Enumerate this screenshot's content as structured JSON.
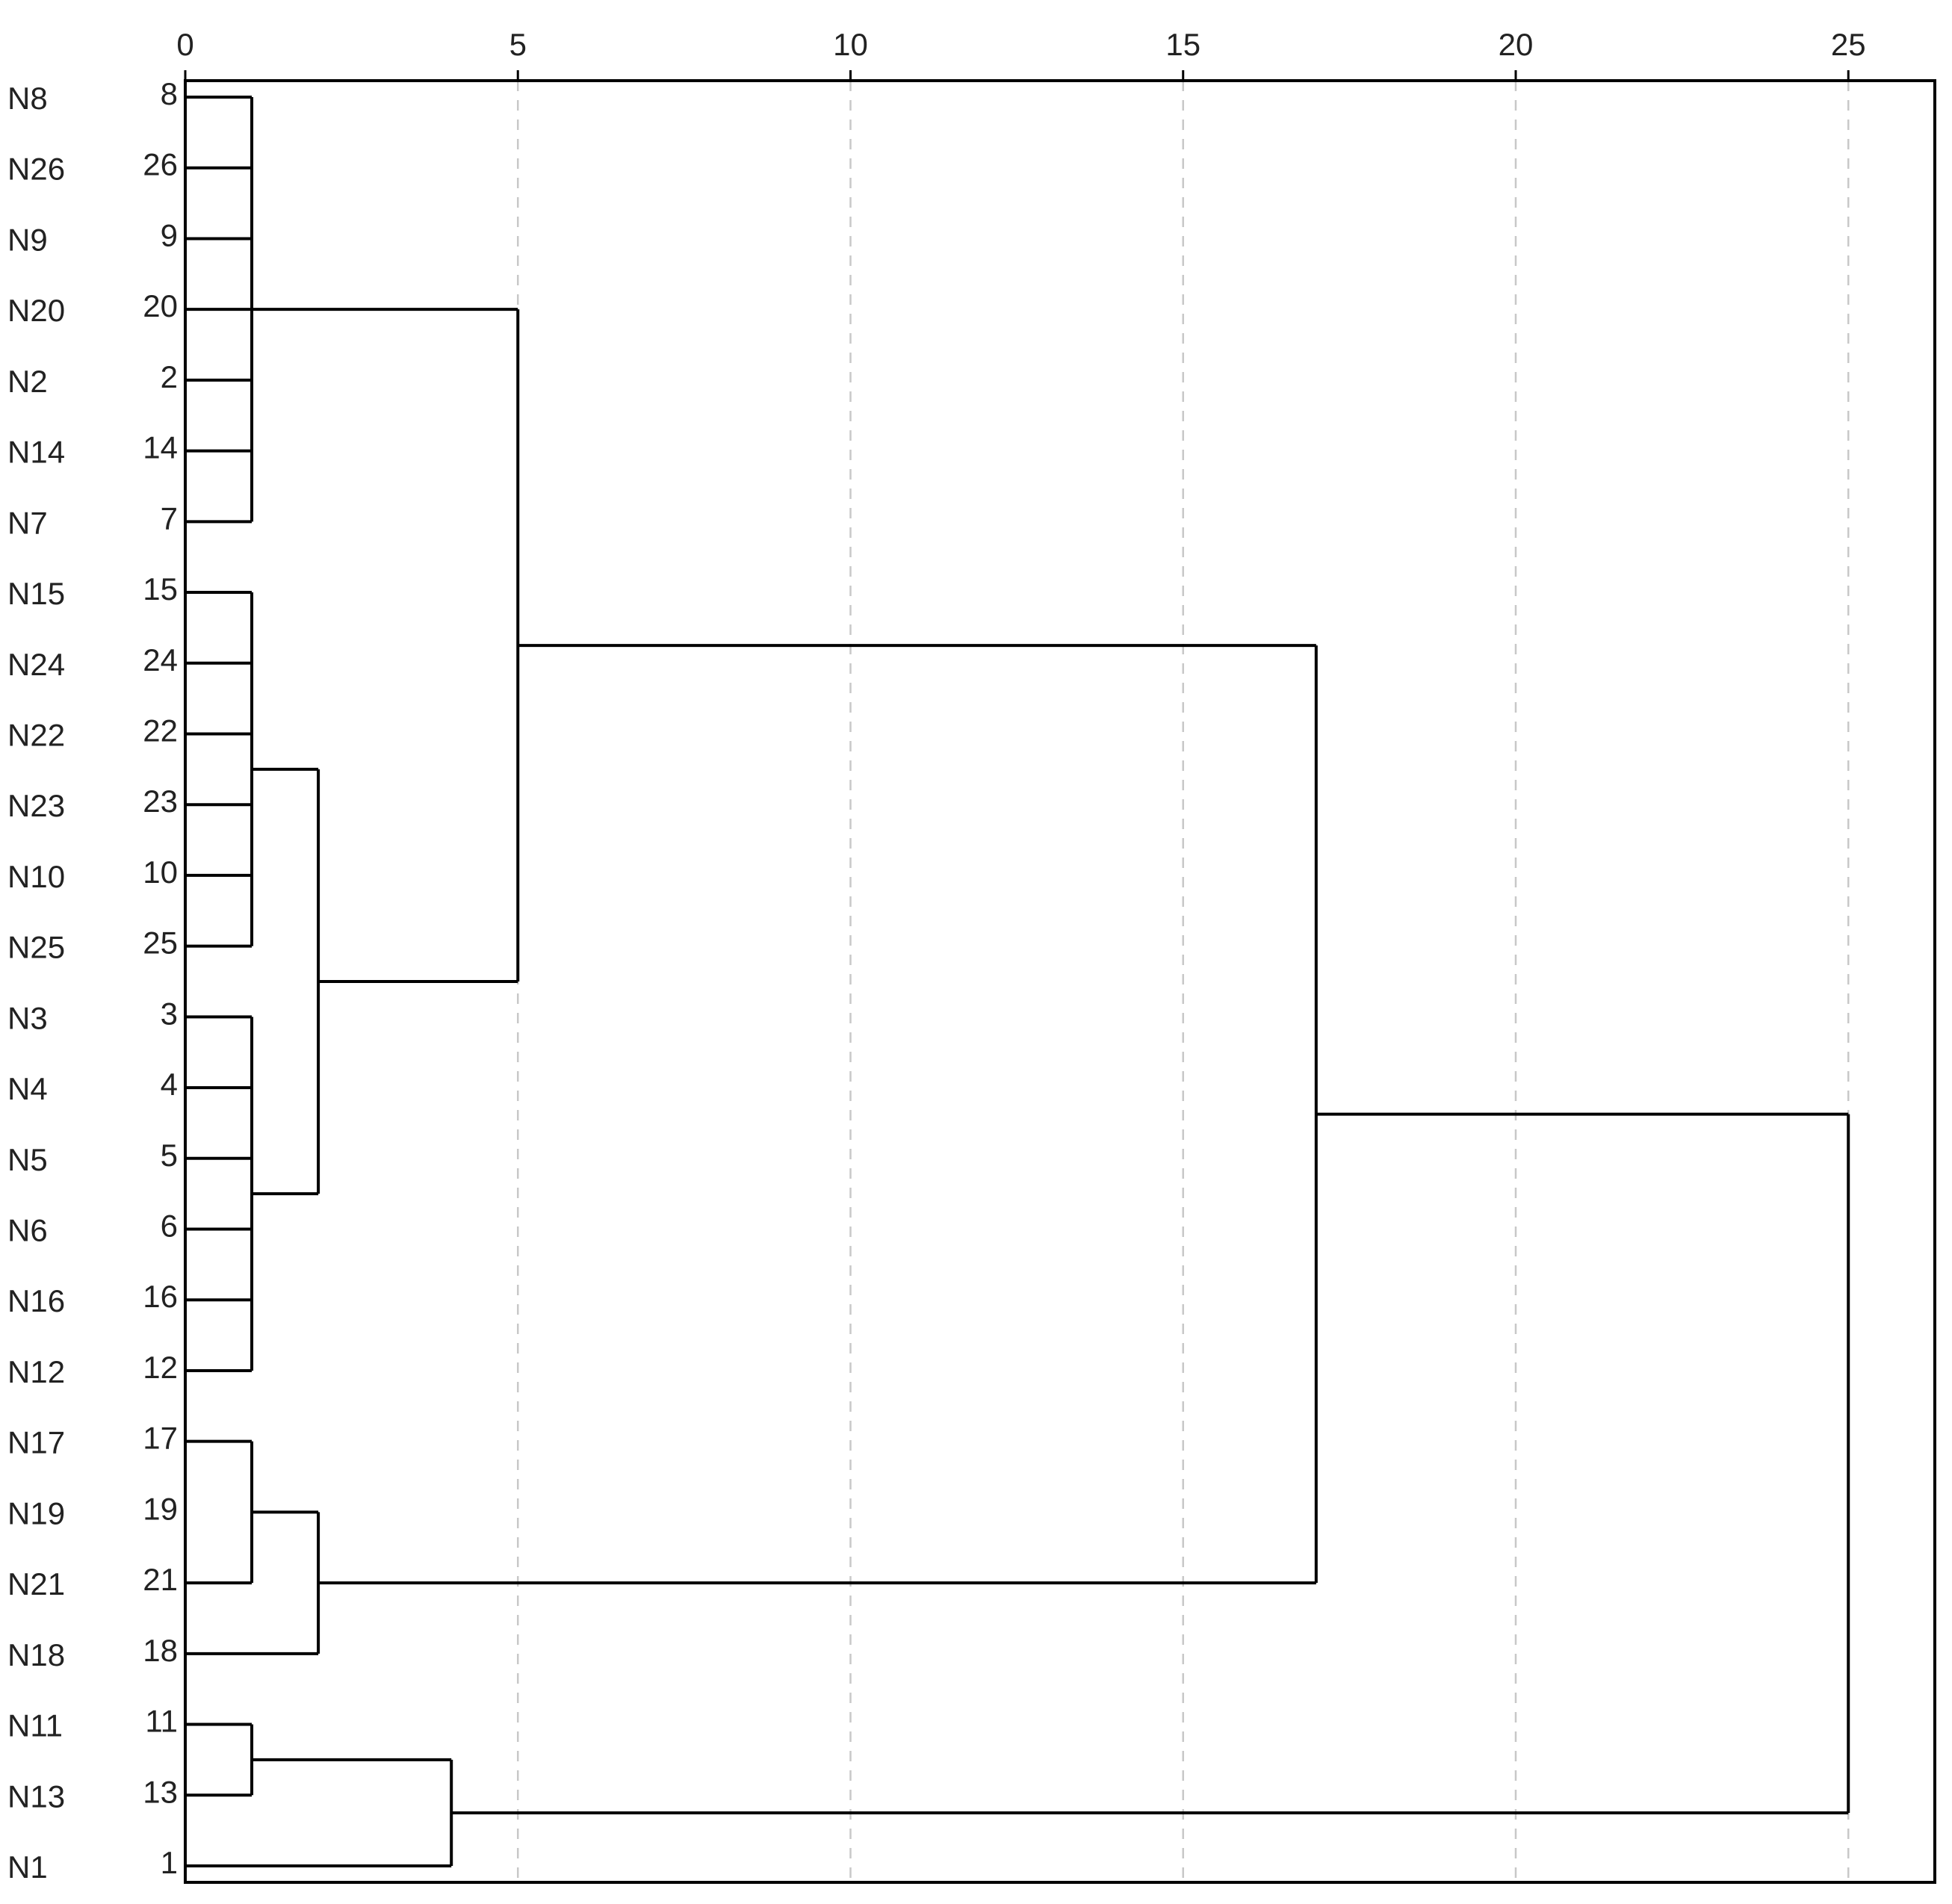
{
  "chart_data": {
    "type": "dendrogram",
    "x_axis": {
      "ticks": [
        0,
        5,
        10,
        15,
        20,
        25
      ],
      "xlim": [
        0,
        26.3
      ],
      "position": "top"
    },
    "grid": "vertical dashed at ticks",
    "leaves": [
      {
        "name": "N8",
        "number": "8"
      },
      {
        "name": "N26",
        "number": "26"
      },
      {
        "name": "N9",
        "number": "9"
      },
      {
        "name": "N20",
        "number": "20"
      },
      {
        "name": "N2",
        "number": "2"
      },
      {
        "name": "N14",
        "number": "14"
      },
      {
        "name": "N7",
        "number": "7"
      },
      {
        "name": "N15",
        "number": "15"
      },
      {
        "name": "N24",
        "number": "24"
      },
      {
        "name": "N22",
        "number": "22"
      },
      {
        "name": "N23",
        "number": "23"
      },
      {
        "name": "N10",
        "number": "10"
      },
      {
        "name": "N25",
        "number": "25"
      },
      {
        "name": "N3",
        "number": "3"
      },
      {
        "name": "N4",
        "number": "4"
      },
      {
        "name": "N5",
        "number": "5"
      },
      {
        "name": "N6",
        "number": "6"
      },
      {
        "name": "N16",
        "number": "16"
      },
      {
        "name": "N12",
        "number": "12"
      },
      {
        "name": "N17",
        "number": "17"
      },
      {
        "name": "N19",
        "number": "19"
      },
      {
        "name": "N21",
        "number": "21"
      },
      {
        "name": "N18",
        "number": "18"
      },
      {
        "name": "N11",
        "number": "11"
      },
      {
        "name": "N13",
        "number": "13"
      },
      {
        "name": "N1",
        "number": "1"
      }
    ],
    "merges": [
      {
        "id": "A",
        "height": 1,
        "children": [
          "N8",
          "N26",
          "N9",
          "N20",
          "N2",
          "N14",
          "N7"
        ]
      },
      {
        "id": "B",
        "height": 1,
        "children": [
          "N15",
          "N24",
          "N22",
          "N23",
          "N10",
          "N25"
        ]
      },
      {
        "id": "C",
        "height": 1,
        "children": [
          "N3",
          "N4",
          "N5",
          "N6",
          "N16",
          "N12"
        ]
      },
      {
        "id": "D",
        "height": 2,
        "children": [
          "B",
          "C"
        ]
      },
      {
        "id": "E",
        "height": 5,
        "children": [
          "A",
          "D"
        ]
      },
      {
        "id": "F",
        "height": 1,
        "children": [
          "N17",
          "N21"
        ]
      },
      {
        "id": "G",
        "height": 2,
        "children": [
          "F",
          "N18"
        ]
      },
      {
        "id": "H",
        "height": 17,
        "children": [
          "E",
          "G"
        ]
      },
      {
        "id": "I",
        "height": 1,
        "children": [
          "N11",
          "N13"
        ]
      },
      {
        "id": "J",
        "height": 4,
        "children": [
          "I",
          "N1"
        ]
      },
      {
        "id": "K",
        "height": 25,
        "children": [
          "H",
          "J"
        ]
      }
    ]
  }
}
